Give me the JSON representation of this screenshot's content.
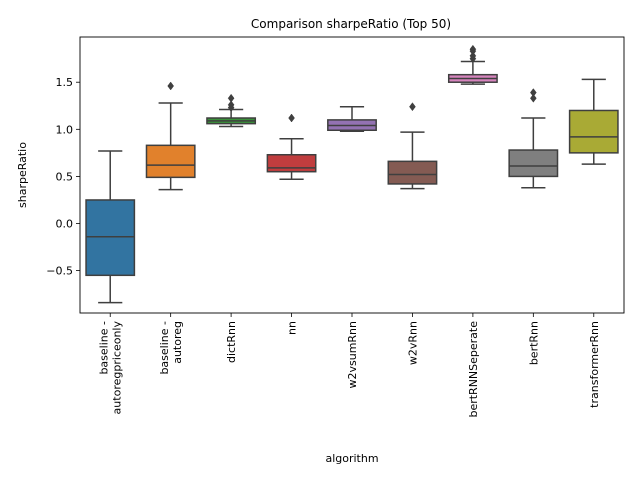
{
  "chart_data": {
    "type": "box",
    "title": "Comparison sharpeRatio (Top 50)",
    "xlabel": "algorithm",
    "ylabel": "sharpeRatio",
    "ylim": [
      -0.95,
      1.98
    ],
    "yticks": [
      -0.5,
      0.0,
      0.5,
      1.0,
      1.5
    ],
    "ytick_labels": [
      "−0.5",
      "0.0",
      "0.5",
      "1.0",
      "1.5"
    ],
    "grid": false,
    "boxes": [
      {
        "category": "baseline -\nautoregpriceonly",
        "color": "#3274a1",
        "whislo": -0.84,
        "q1": -0.55,
        "median": -0.14,
        "q3": 0.25,
        "whishi": 0.77,
        "fliers": []
      },
      {
        "category": "baseline -\nautoreg",
        "color": "#e1812c",
        "whislo": 0.36,
        "q1": 0.49,
        "median": 0.62,
        "q3": 0.83,
        "whishi": 1.28,
        "fliers": [
          1.46
        ]
      },
      {
        "category": "dictRnn",
        "color": "#3a923a",
        "whislo": 1.03,
        "q1": 1.06,
        "median": 1.09,
        "q3": 1.12,
        "whishi": 1.21,
        "fliers": [
          1.23,
          1.26,
          1.33
        ]
      },
      {
        "category": "nn",
        "color": "#c03d3e",
        "whislo": 0.47,
        "q1": 0.55,
        "median": 0.59,
        "q3": 0.73,
        "whishi": 0.9,
        "fliers": [
          1.12
        ]
      },
      {
        "category": "w2vsumRnn",
        "color": "#9372b2",
        "whislo": 0.98,
        "q1": 0.99,
        "median": 1.04,
        "q3": 1.1,
        "whishi": 1.24,
        "fliers": []
      },
      {
        "category": "w2vRnn",
        "color": "#845b53",
        "whislo": 0.37,
        "q1": 0.42,
        "median": 0.52,
        "q3": 0.66,
        "whishi": 0.97,
        "fliers": [
          1.24
        ]
      },
      {
        "category": "bertRNNSeperate",
        "color": "#d684bd",
        "whislo": 1.48,
        "q1": 1.5,
        "median": 1.54,
        "q3": 1.58,
        "whishi": 1.72,
        "fliers": [
          1.75,
          1.78,
          1.83,
          1.85
        ]
      },
      {
        "category": "bertRnn",
        "color": "#7f7f7f",
        "whislo": 0.38,
        "q1": 0.5,
        "median": 0.61,
        "q3": 0.78,
        "whishi": 1.12,
        "fliers": [
          1.33,
          1.39
        ]
      },
      {
        "category": "transformerRnn",
        "color": "#a9aa35",
        "whislo": 0.63,
        "q1": 0.75,
        "median": 0.92,
        "q3": 1.2,
        "whishi": 1.53,
        "fliers": []
      }
    ]
  }
}
